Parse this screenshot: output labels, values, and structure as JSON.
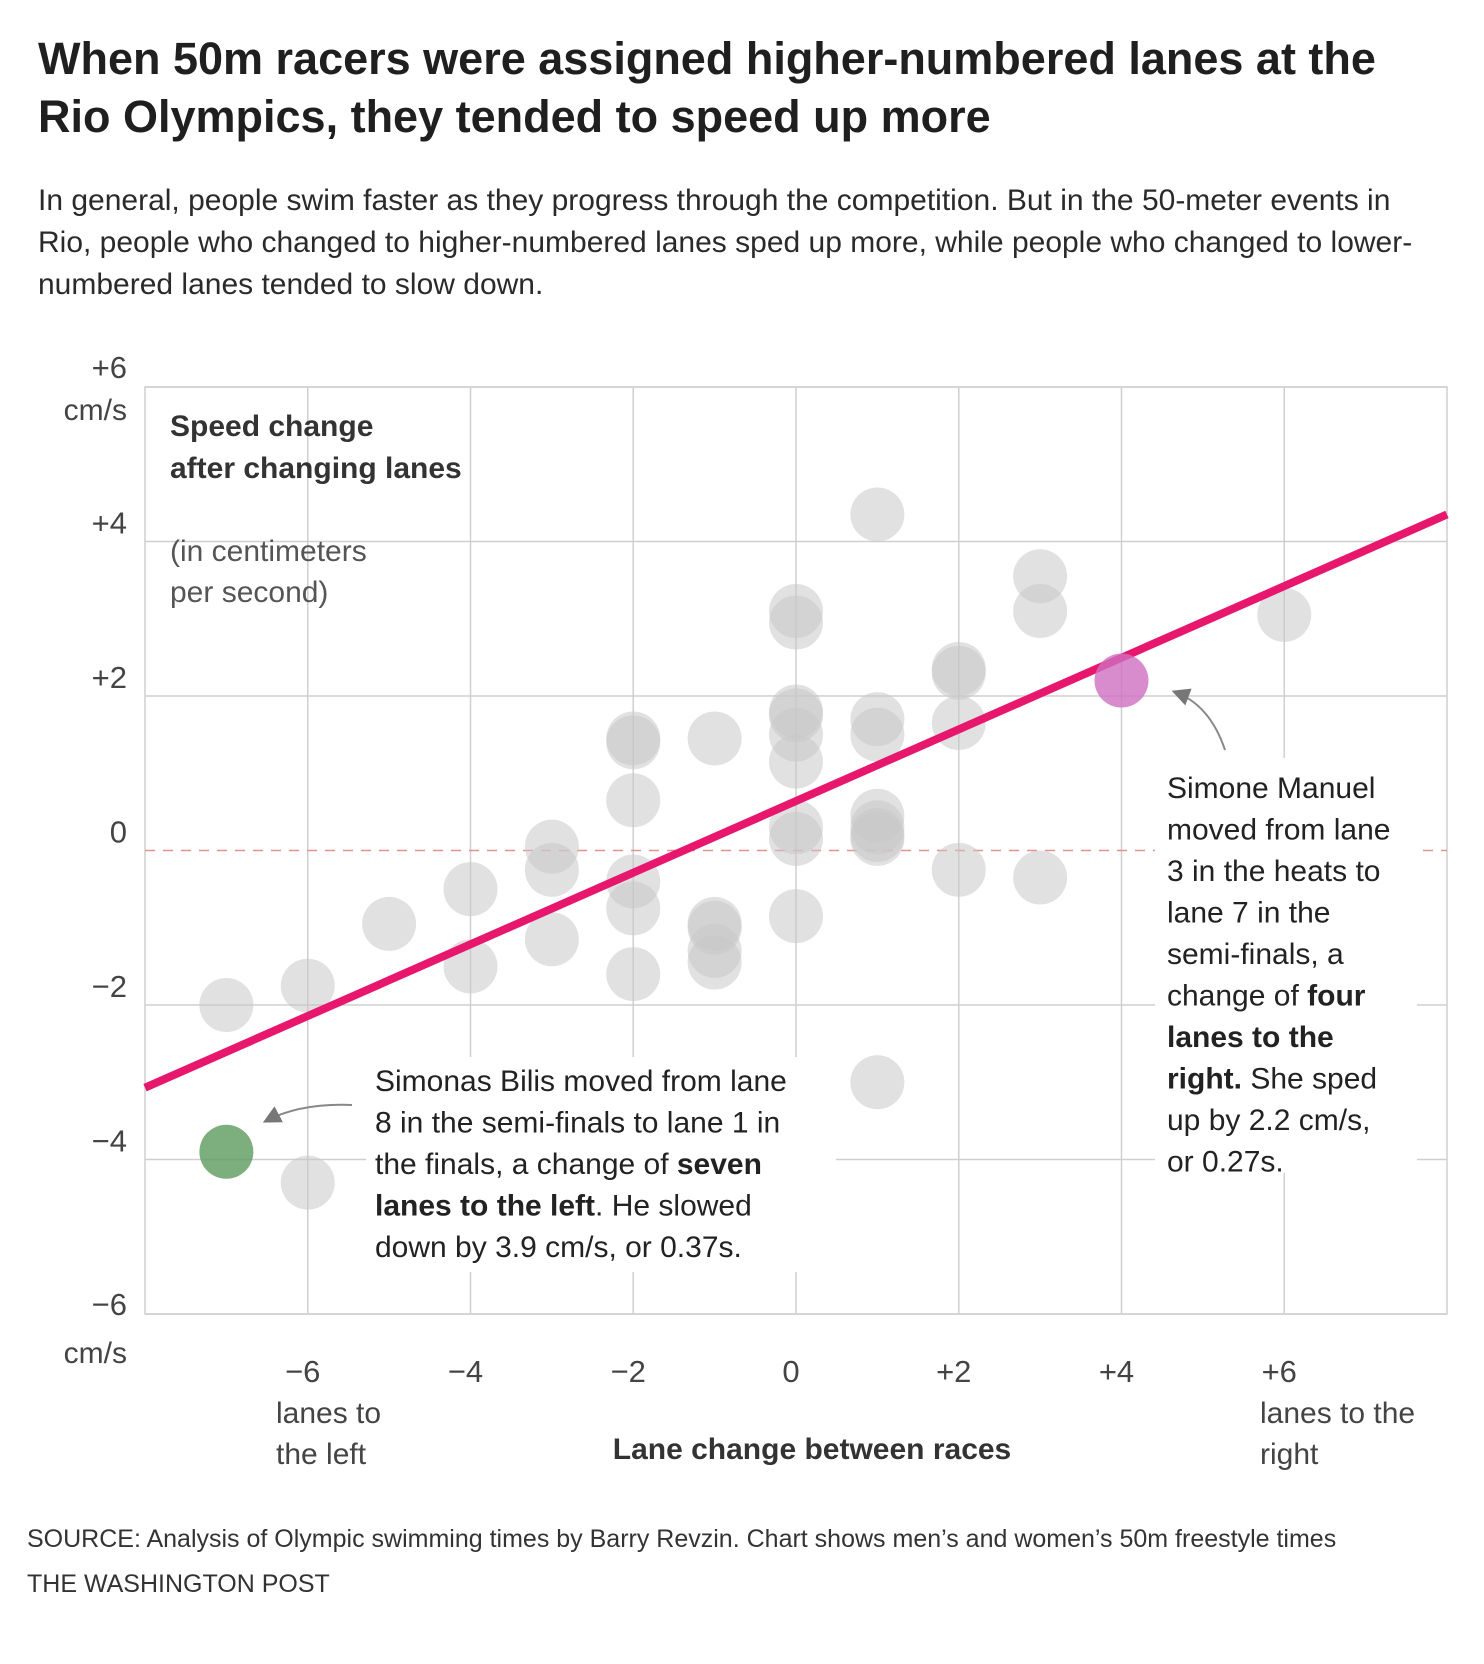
{
  "title": "When 50m racers were assigned higher-numbered lanes at the Rio Olympics, they tended to speed up more",
  "subtitle": "In general, people swim faster as they progress through the competition. But in the 50-meter events in Rio, people who changed to higher-numbered lanes sped up more, while people who changed to lower-numbered lanes tended to slow down.",
  "source": "SOURCE: Analysis of Olympic swimming times by Barry Revzin. Chart shows men’s and women’s 50m freestyle times",
  "credit": "THE WASHINGTON POST",
  "colors": {
    "dot": "#c8c8c8",
    "trend": "#e8176e",
    "highlight_right": "#cf6fc0",
    "highlight_left": "#5d9a5c",
    "zero_line": "#e89090",
    "grid": "#cfcfcf"
  },
  "chart_data": {
    "type": "scatter",
    "xlabel": "Lane change between races",
    "ylabel": "Speed change after changing lanes",
    "ylabel_note": "(in centimeters per second)",
    "x_unit_left": "lanes to the left",
    "x_unit_right": "lanes to the right",
    "y_unit": "cm/s",
    "xlim": [
      -8,
      8
    ],
    "ylim": [
      -6,
      6
    ],
    "x_ticks": [
      {
        "value": -6,
        "label": "−6"
      },
      {
        "value": -4,
        "label": "−4"
      },
      {
        "value": -2,
        "label": "−2"
      },
      {
        "value": 0,
        "label": "0"
      },
      {
        "value": 2,
        "label": "+2"
      },
      {
        "value": 4,
        "label": "+4"
      },
      {
        "value": 6,
        "label": "+6"
      }
    ],
    "y_ticks": [
      {
        "value": 6,
        "label": "+6"
      },
      {
        "value": 4,
        "label": "+4"
      },
      {
        "value": 2,
        "label": "+2"
      },
      {
        "value": 0,
        "label": "0"
      },
      {
        "value": -2,
        "label": "−2"
      },
      {
        "value": -4,
        "label": "−4"
      },
      {
        "value": -6,
        "label": "−6"
      }
    ],
    "grid": true,
    "points": [
      {
        "x": -7,
        "y": -2.0
      },
      {
        "x": -6,
        "y": -1.75
      },
      {
        "x": -6,
        "y": -4.3
      },
      {
        "x": -5,
        "y": -0.95
      },
      {
        "x": -4,
        "y": -0.5
      },
      {
        "x": -4,
        "y": -1.5
      },
      {
        "x": -3,
        "y": 0.05
      },
      {
        "x": -3,
        "y": -0.25
      },
      {
        "x": -3,
        "y": -1.15
      },
      {
        "x": -2,
        "y": 1.45
      },
      {
        "x": -2,
        "y": 1.4
      },
      {
        "x": -2,
        "y": 0.65
      },
      {
        "x": -2,
        "y": -0.4
      },
      {
        "x": -2,
        "y": -0.75
      },
      {
        "x": -2,
        "y": -1.6
      },
      {
        "x": -1,
        "y": 1.45
      },
      {
        "x": -1,
        "y": -0.95
      },
      {
        "x": -1,
        "y": -1.0
      },
      {
        "x": -1,
        "y": -1.3
      },
      {
        "x": -1,
        "y": -1.45
      },
      {
        "x": 0,
        "y": 3.1
      },
      {
        "x": 0,
        "y": 2.95
      },
      {
        "x": 0,
        "y": 1.8
      },
      {
        "x": 0,
        "y": 1.75
      },
      {
        "x": 0,
        "y": 1.5
      },
      {
        "x": 0,
        "y": 1.15
      },
      {
        "x": 0,
        "y": 0.3
      },
      {
        "x": 0,
        "y": 0.15
      },
      {
        "x": 0,
        "y": -0.85
      },
      {
        "x": 1,
        "y": 4.35
      },
      {
        "x": 1,
        "y": 1.7
      },
      {
        "x": 1,
        "y": 1.5
      },
      {
        "x": 1,
        "y": 0.45
      },
      {
        "x": 1,
        "y": 0.3
      },
      {
        "x": 1,
        "y": 0.2
      },
      {
        "x": 1,
        "y": 0.15
      },
      {
        "x": 1,
        "y": -3.0
      },
      {
        "x": 2,
        "y": 2.35
      },
      {
        "x": 2,
        "y": 2.3
      },
      {
        "x": 2,
        "y": 1.65
      },
      {
        "x": 2,
        "y": -0.25
      },
      {
        "x": 3,
        "y": 3.55
      },
      {
        "x": 3,
        "y": 3.1
      },
      {
        "x": 3,
        "y": -0.35
      },
      {
        "x": 6,
        "y": 3.05
      }
    ],
    "highlights": [
      {
        "name": "Simone Manuel",
        "x": 4,
        "y": 2.2
      },
      {
        "name": "Simonas Bilis",
        "x": -7,
        "y": -3.9
      }
    ],
    "trend_line": {
      "x": [
        -8,
        8
      ],
      "y": [
        -3.07,
        4.35
      ]
    },
    "zero_reference": 0
  },
  "annotations": {
    "manuel": {
      "lines": [
        {
          "parts": [
            {
              "text": "Simone Manuel",
              "bold": false
            }
          ]
        },
        {
          "parts": [
            {
              "text": "moved from lane",
              "bold": false
            }
          ]
        },
        {
          "parts": [
            {
              "text": "3 in the heats to",
              "bold": false
            }
          ]
        },
        {
          "parts": [
            {
              "text": "lane 7 in the",
              "bold": false
            }
          ]
        },
        {
          "parts": [
            {
              "text": "semi-finals, a",
              "bold": false
            }
          ]
        },
        {
          "parts": [
            {
              "text": "change of ",
              "bold": false
            },
            {
              "text": "four",
              "bold": true
            }
          ]
        },
        {
          "parts": [
            {
              "text": "lanes to the",
              "bold": true
            }
          ]
        },
        {
          "parts": [
            {
              "text": "right.",
              "bold": true
            },
            {
              "text": " She sped",
              "bold": false
            }
          ]
        },
        {
          "parts": [
            {
              "text": "up by 2.2 cm/s,",
              "bold": false
            }
          ]
        },
        {
          "parts": [
            {
              "text": "or 0.27s.",
              "bold": false
            }
          ]
        }
      ]
    },
    "bilis": {
      "lines": [
        {
          "parts": [
            {
              "text": "Simonas Bilis moved from lane",
              "bold": false
            }
          ]
        },
        {
          "parts": [
            {
              "text": "8 in the semi-finals to lane 1 in",
              "bold": false
            }
          ]
        },
        {
          "parts": [
            {
              "text": "the finals, a change of ",
              "bold": false
            },
            {
              "text": "seven",
              "bold": true
            }
          ]
        },
        {
          "parts": [
            {
              "text": "lanes to the left",
              "bold": true
            },
            {
              "text": ". He slowed",
              "bold": false
            }
          ]
        },
        {
          "parts": [
            {
              "text": "down by 3.9 cm/s, or 0.37s.",
              "bold": false
            }
          ]
        }
      ]
    }
  }
}
